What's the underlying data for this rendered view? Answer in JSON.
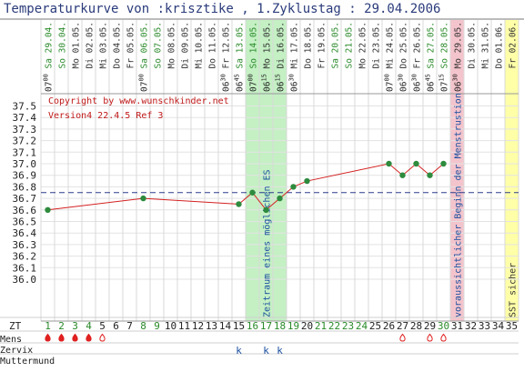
{
  "chart_data": {
    "type": "line",
    "title": "Temperaturkurve von :krisztike , 1.Zyklustag : 29.04.2006",
    "copyright": "Copyright by www.wunschkinder.net",
    "version": "Version4 22.4.5 Ref 3",
    "ylim": [
      35.9,
      37.6
    ],
    "yticks": [
      "37.5",
      "37.4",
      "37.3",
      "37.2",
      "37.1",
      "37.0",
      "36.9",
      "36.8",
      "36.7",
      "36.6",
      "36.5",
      "36.4",
      "36.3",
      "36.2",
      "36.1",
      "36.0"
    ],
    "coverline": 36.75,
    "dates": [
      "Sa 29.04.",
      "So 30.04.",
      "Mo 01.05.",
      "Di 02.05.",
      "Mi 03.05.",
      "Do 04.05.",
      "Fr 05.05.",
      "Sa 06.05.",
      "So 07.05.",
      "Mo 08.05.",
      "Di 09.05.",
      "Mi 10.05.",
      "Do 11.05.",
      "Fr 12.05.",
      "Sa 13.05.",
      "So 14.05.",
      "Mo 15.05.",
      "Di 16.05.",
      "Mi 17.05.",
      "Do 18.05.",
      "Fr 19.05.",
      "Sa 20.05.",
      "So 21.05.",
      "Mo 22.05.",
      "Di 23.05.",
      "Mi 24.05.",
      "Do 25.05.",
      "Fr 26.05.",
      "Sa 27.05.",
      "So 28.05.",
      "Mo 29.05.",
      "Di 30.05.",
      "Mi 31.05.",
      "Do 01.06.",
      "Fr 02.06."
    ],
    "times": [
      {
        "day": 1,
        "t": "07",
        "m": "00"
      },
      {
        "day": 8,
        "t": "07",
        "m": "00"
      },
      {
        "day": 14,
        "t": "06",
        "m": "30"
      },
      {
        "day": 15,
        "t": "06",
        "m": "45"
      },
      {
        "day": 16,
        "t": "07",
        "m": "00"
      },
      {
        "day": 17,
        "t": "06",
        "m": "15"
      },
      {
        "day": 18,
        "t": "06",
        "m": "15"
      },
      {
        "day": 19,
        "t": "06",
        "m": "30"
      },
      {
        "day": 26,
        "t": "07",
        "m": "00"
      },
      {
        "day": 27,
        "t": "06",
        "m": "30"
      },
      {
        "day": 28,
        "t": "06",
        "m": "30"
      },
      {
        "day": 29,
        "t": "06",
        "m": "45"
      },
      {
        "day": 30,
        "t": "07",
        "m": "15"
      },
      {
        "day": 31,
        "t": "06",
        "m": "30"
      }
    ],
    "series": [
      {
        "values": [
          {
            "x": 1,
            "y": 36.6
          },
          {
            "x": 8,
            "y": 36.7
          },
          {
            "x": 15,
            "y": 36.65
          },
          {
            "x": 16,
            "y": 36.75
          },
          {
            "x": 17,
            "y": 36.6
          },
          {
            "x": 18,
            "y": 36.7
          },
          {
            "x": 19,
            "y": 36.8
          },
          {
            "x": 20,
            "y": 36.85
          },
          {
            "x": 26,
            "y": 37.0
          },
          {
            "x": 27,
            "y": 36.9
          },
          {
            "x": 28,
            "y": 37.0
          },
          {
            "x": 29,
            "y": 36.9
          },
          {
            "x": 30,
            "y": 37.0
          }
        ]
      }
    ],
    "bands": [
      {
        "from": 16,
        "to": 18,
        "label": "Zeitraum eines möglichen ES",
        "color": "#c4f0c4",
        "textColor": "#1a4fa0"
      },
      {
        "from": 31,
        "to": 31,
        "label": "voraussichtlicher Beginn der Menstrustion",
        "color": "#f4c4cc",
        "textColor": "#1a4fa0"
      },
      {
        "from": 35,
        "to": 35,
        "label": "SST sicher",
        "color": "#ffffa8",
        "textColor": "#333333"
      }
    ],
    "zt_label": "ZT",
    "zt_green": [
      1,
      2,
      3,
      4,
      8,
      9,
      16,
      17,
      18,
      19,
      21,
      22,
      23,
      24,
      30
    ],
    "rows": [
      {
        "label": "Mens",
        "marks": [
          {
            "day": 1,
            "kind": "drop-filled"
          },
          {
            "day": 2,
            "kind": "drop-filled"
          },
          {
            "day": 3,
            "kind": "drop-filled"
          },
          {
            "day": 4,
            "kind": "drop-filled"
          },
          {
            "day": 5,
            "kind": "drop-open"
          },
          {
            "day": 27,
            "kind": "drop-open"
          },
          {
            "day": 29,
            "kind": "drop-open"
          },
          {
            "day": 30,
            "kind": "drop-open"
          }
        ]
      },
      {
        "label": "Zervix",
        "marks": [
          {
            "day": 15,
            "kind": "text",
            "text": "k"
          },
          {
            "day": 17,
            "kind": "text",
            "text": "k"
          },
          {
            "day": 18,
            "kind": "text",
            "text": "k"
          }
        ]
      },
      {
        "label": "Muttermund",
        "marks": []
      }
    ],
    "colors": {
      "line": "#d42020",
      "coverline": "#2a3b8a",
      "grid": "#e3e3e3",
      "sat": "#2a8a2a",
      "weekday": "#333333",
      "drop": "#e02020",
      "zervix": "#1a4fa0"
    }
  }
}
